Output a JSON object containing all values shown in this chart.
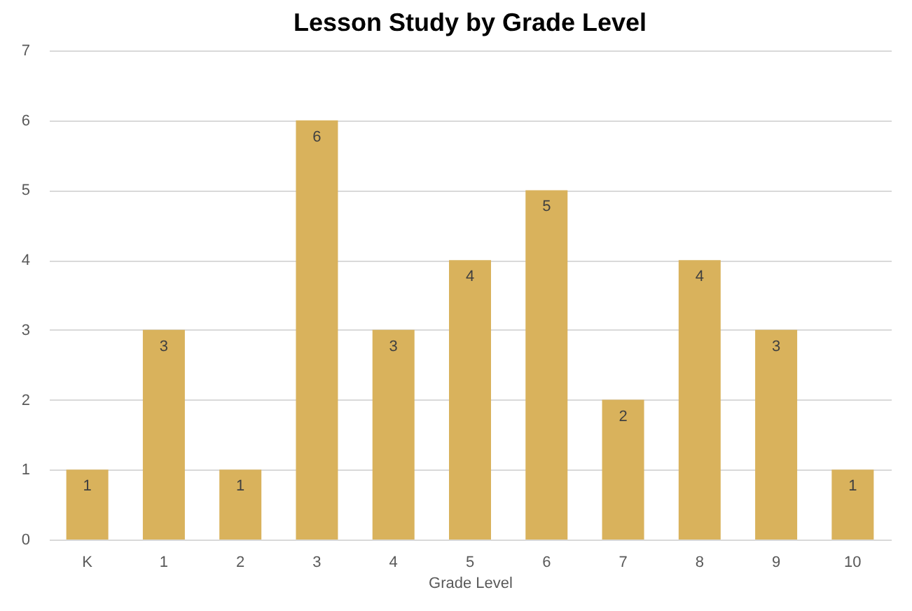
{
  "chart_data": {
    "type": "bar",
    "title": "Lesson Study by Grade Level",
    "xlabel": "Grade Level",
    "categories": [
      "K",
      "1",
      "2",
      "3",
      "4",
      "5",
      "6",
      "7",
      "8",
      "9",
      "10"
    ],
    "values": [
      1,
      3,
      1,
      6,
      3,
      4,
      5,
      2,
      4,
      3,
      1
    ],
    "color": "#d9b25c",
    "ylim": [
      0,
      7
    ],
    "yticks": [
      0,
      1,
      2,
      3,
      4,
      5,
      6,
      7
    ],
    "grid": "y",
    "data_labels": true
  }
}
